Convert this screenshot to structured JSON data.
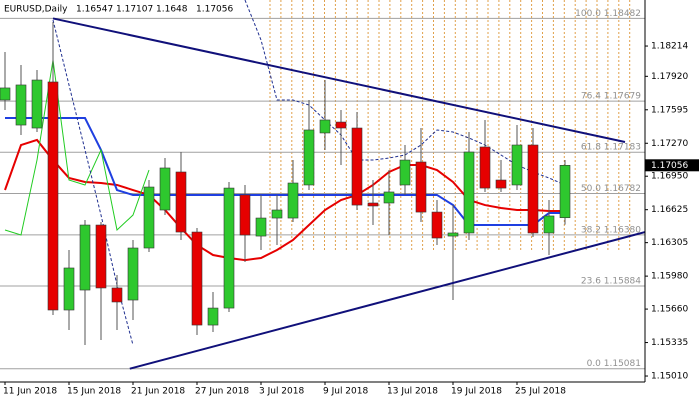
{
  "chart_data": {
    "type": "candlestick",
    "symbol": "EURUSD,Daily",
    "categories": [
      "11 Jun 2018",
      null,
      null,
      null,
      "15 Jun 2018",
      null,
      null,
      null,
      "21 Jun 2018",
      null,
      null,
      null,
      "27 Jun 2018",
      null,
      null,
      null,
      "3 Jul 2018",
      null,
      null,
      null,
      "9 Jul 2018",
      null,
      null,
      null,
      "13 Jul 2018",
      null,
      null,
      null,
      "19 Jul 2018",
      null,
      null,
      null,
      "25 Jul 2018",
      null,
      null,
      null
    ],
    "open": [
      1.1769,
      1.17447,
      1.17418,
      1.17865,
      1.15651,
      1.15845,
      1.16476,
      1.15865,
      1.15748,
      1.16253,
      1.16622,
      1.16991,
      1.16408,
      1.15505,
      1.1567,
      1.16768,
      1.16369,
      1.16544,
      1.16544,
      1.16865,
      1.1737,
      1.17476,
      1.17418,
      1.1669,
      1.1669,
      1.16865,
      1.17088,
      1.16602,
      1.16369,
      1.16399,
      1.17234,
      1.16913,
      1.16865,
      1.17253,
      1.16399,
      1.16547
    ],
    "high": [
      1.18156,
      1.1803,
      1.17981,
      1.18447,
      1.16234,
      1.16525,
      1.16505,
      1.15991,
      1.16331,
      1.16913,
      1.17127,
      1.17185,
      1.16447,
      1.15826,
      1.16894,
      1.16865,
      1.16768,
      1.16768,
      1.17107,
      1.1769,
      1.17884,
      1.17593,
      1.17574,
      1.16913,
      1.1701,
      1.17253,
      1.17418,
      1.16719,
      1.1667,
      1.17379,
      1.17496,
      1.17107,
      1.17447,
      1.17418,
      1.16719,
      1.17107
    ],
    "low": [
      1.17593,
      1.1735,
      1.17379,
      1.15602,
      1.15457,
      1.15311,
      1.1536,
      1.15457,
      1.15554,
      1.16214,
      1.16573,
      1.16331,
      1.15408,
      1.15437,
      1.15632,
      1.16117,
      1.16234,
      1.16282,
      1.16505,
      1.16816,
      1.17204,
      1.17059,
      1.16622,
      1.16476,
      1.16379,
      1.16768,
      1.16505,
      1.16282,
      1.15748,
      1.16331,
      1.16797,
      1.16797,
      1.16816,
      1.1636,
      1.16185,
      1.1648
    ],
    "close": [
      1.17807,
      1.17836,
      1.17884,
      1.15651,
      1.16059,
      1.16476,
      1.15865,
      1.15729,
      1.16253,
      1.16845,
      1.1703,
      1.16408,
      1.15505,
      1.1567,
      1.16835,
      1.16379,
      1.16544,
      1.16622,
      1.16884,
      1.17399,
      1.17496,
      1.17418,
      1.1667,
      1.16661,
      1.16797,
      1.17107,
      1.16602,
      1.1635,
      1.16399,
      1.17185,
      1.16835,
      1.16835,
      1.17253,
      1.16399,
      1.16564,
      1.17056
    ],
    "up_color": "#2ec82e",
    "down_color": "#e60000",
    "indicators": [
      {
        "color": "#e60000",
        "width": 2,
        "dashed": false,
        "values": [
          1.16816,
          1.17253,
          1.17302,
          1.17107,
          1.16933,
          1.16894,
          1.16884,
          1.16865,
          1.16816,
          1.16768,
          1.16622,
          1.16447,
          1.16282,
          1.16185,
          1.16156,
          1.16136,
          1.16156,
          1.16234,
          1.16331,
          1.16476,
          1.16622,
          1.16719,
          1.16768,
          1.16865,
          1.16991,
          1.17059,
          1.17059,
          1.1701,
          1.16894,
          1.16719,
          1.1667,
          1.16641,
          1.16622,
          1.16622,
          1.16612,
          1.16612
        ]
      },
      {
        "color": "#1f3fe0",
        "width": 2,
        "dashed": false,
        "values": [
          1.17515,
          1.17515,
          1.17515,
          1.17515,
          1.17515,
          1.17515,
          1.17205,
          1.16816,
          1.16768,
          1.16768,
          1.16768,
          1.16768,
          1.16768,
          1.16768,
          1.16768,
          1.16768,
          1.16768,
          1.16768,
          1.16768,
          1.16768,
          1.16768,
          1.16768,
          1.16768,
          1.16768,
          1.16768,
          1.16768,
          1.16768,
          1.16768,
          1.1667,
          1.16476,
          1.16476,
          1.16476,
          1.16476,
          1.16476,
          1.16593,
          1.16593
        ]
      },
      {
        "color": "#22cc22",
        "width": 1,
        "dashed": false,
        "values": [
          1.16428,
          1.16379,
          1.17107,
          1.18078,
          1.16913,
          1.16865,
          1.17205,
          1.16428,
          1.16573,
          1.1701,
          null,
          null,
          null,
          null,
          null,
          null,
          null,
          null,
          null,
          null,
          null,
          null,
          null,
          null,
          null,
          null,
          null,
          null,
          null,
          null,
          null,
          null,
          null,
          null,
          null,
          null
        ]
      },
      {
        "color": "#1f2f90",
        "width": 1,
        "dashed": true,
        "values": [
          null,
          null,
          null,
          1.18467,
          1.17836,
          1.17205,
          1.16573,
          1.15894,
          1.15311,
          null,
          null,
          null,
          null,
          null,
          null,
          1.18661,
          1.18273,
          1.1769,
          1.1769,
          1.17641,
          1.17496,
          1.1735,
          1.17107,
          1.17107,
          1.17127,
          1.17156,
          1.17253,
          1.17399,
          1.17379,
          1.17321,
          1.17253,
          1.17156,
          1.17059,
          1.16991,
          1.16933,
          1.16865
        ]
      }
    ],
    "fib_levels": [
      {
        "value": 1.18482,
        "label": "100.0 1.18482"
      },
      {
        "value": 1.17679,
        "label": "76.4 1.17679"
      },
      {
        "value": 1.17183,
        "label": "61.8 1.17183"
      },
      {
        "value": 1.16782,
        "label": "50.0 1.16782"
      },
      {
        "value": 1.1638,
        "label": "38.2 1.16380"
      },
      {
        "value": 1.15884,
        "label": "23.6 1.15884"
      },
      {
        "value": 1.15081,
        "label": "0.0 1.15081"
      }
    ],
    "trendlines": [
      {
        "color": "#10107a",
        "x": [
          3,
          38.75
        ],
        "y": [
          1.18482,
          1.17282
        ]
      },
      {
        "color": "#10107a",
        "x": [
          7.8,
          40
        ],
        "y": [
          1.15081,
          1.16408
        ]
      }
    ],
    "ylim": [
      1.14952,
      1.18661
    ],
    "yticks": [
      {
        "value": 1.1501,
        "label": "1.15010"
      },
      1.15335,
      {
        "value": 1.1566,
        "label": "1.15660"
      },
      {
        "value": 1.1598,
        "label": "1.15980"
      },
      1.16305,
      1.16625,
      {
        "value": 1.1695,
        "label": "1.16950"
      },
      {
        "value": 1.1727,
        "label": "1.17270"
      },
      1.17595,
      {
        "value": 1.1792,
        "label": "1.17920"
      },
      1.18214
    ]
  }
}
